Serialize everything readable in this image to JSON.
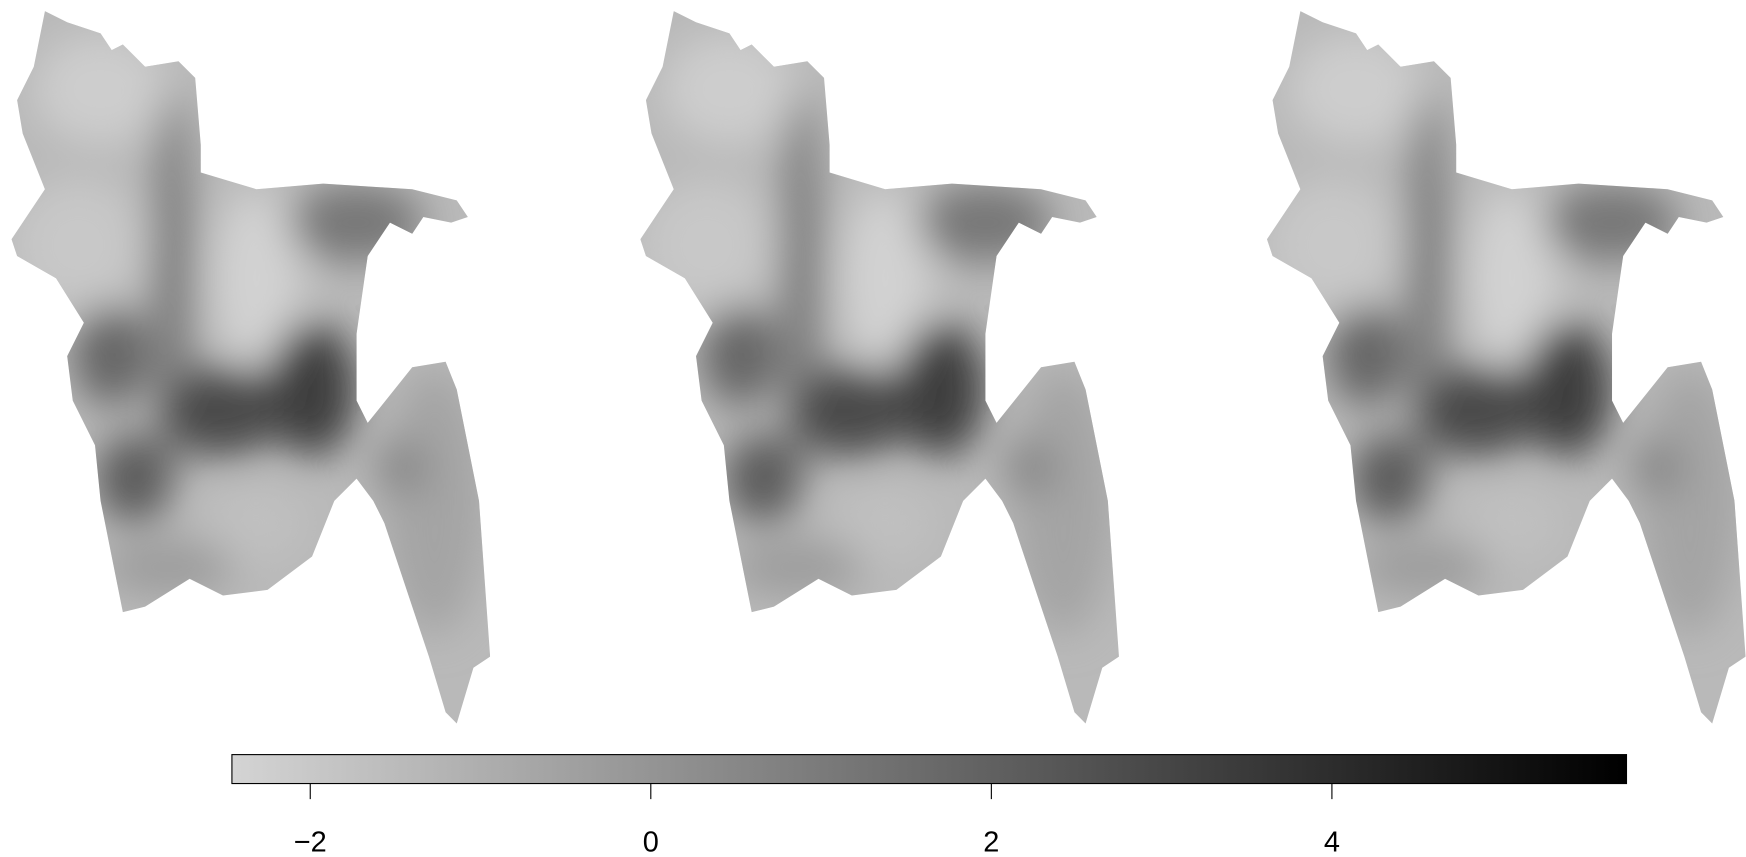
{
  "colorbar": {
    "lim": [
      -2.46,
      5.73
    ],
    "ticks": [
      {
        "value": -2,
        "label": "−2"
      },
      0,
      2,
      4
    ],
    "colors": [
      "#d4d4d4",
      "#000000"
    ]
  }
}
